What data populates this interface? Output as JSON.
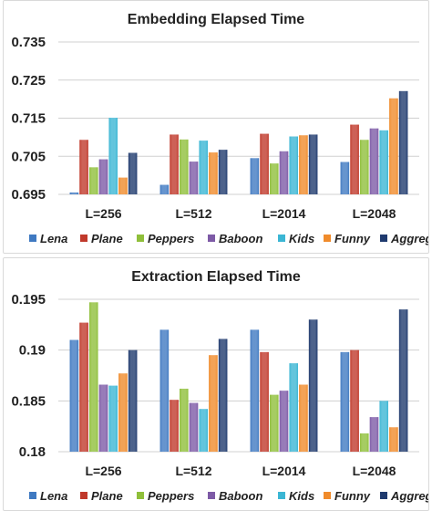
{
  "colors": {
    "Lena": "#3f79c1",
    "Plane": "#c0392b",
    "Peppers": "#8fbf3a",
    "Baboon": "#7d5aa6",
    "Kids": "#3bb6d4",
    "Funny": "#f08b2b",
    "Aggregate": "#1f3a6e"
  },
  "chart_data": [
    {
      "type": "bar",
      "title": "Embedding Elapsed Time",
      "categories": [
        "L=256",
        "L=512",
        "L=2014",
        "L=2048"
      ],
      "ylim": [
        0.695,
        0.735
      ],
      "yticks": [
        "0.695",
        "0.705",
        "0.715",
        "0.725",
        "0.735"
      ],
      "grid": true,
      "legend_position": "bottom",
      "series": [
        {
          "name": "Lena",
          "values": [
            0.6955,
            0.6975,
            0.7045,
            0.7035
          ]
        },
        {
          "name": "Plane",
          "values": [
            0.7093,
            0.7107,
            0.7109,
            0.7133
          ]
        },
        {
          "name": "Peppers",
          "values": [
            0.7021,
            0.7094,
            0.7031,
            0.7093
          ]
        },
        {
          "name": "Baboon",
          "values": [
            0.7042,
            0.7036,
            0.7063,
            0.7123
          ]
        },
        {
          "name": "Kids",
          "values": [
            0.7151,
            0.7091,
            0.7102,
            0.7118
          ]
        },
        {
          "name": "Funny",
          "values": [
            0.6994,
            0.706,
            0.7105,
            0.7202
          ]
        },
        {
          "name": "Aggregate",
          "values": [
            0.7059,
            0.7067,
            0.7107,
            0.7221
          ]
        }
      ]
    },
    {
      "type": "bar",
      "title": "Extraction Elapsed Time",
      "categories": [
        "L=256",
        "L=512",
        "L=2014",
        "L=2048"
      ],
      "ylim": [
        0.18,
        0.195
      ],
      "yticks": [
        "0.18",
        "0.185",
        "0.19",
        "0.195"
      ],
      "grid": true,
      "legend_position": "bottom",
      "series": [
        {
          "name": "Lena",
          "values": [
            0.191,
            0.192,
            0.192,
            0.1898
          ]
        },
        {
          "name": "Plane",
          "values": [
            0.1927,
            0.1851,
            0.1898,
            0.19
          ]
        },
        {
          "name": "Peppers",
          "values": [
            0.1947,
            0.1862,
            0.1856,
            0.1818
          ]
        },
        {
          "name": "Baboon",
          "values": [
            0.1866,
            0.1848,
            0.186,
            0.1834
          ]
        },
        {
          "name": "Kids",
          "values": [
            0.1865,
            0.1842,
            0.1887,
            0.185
          ]
        },
        {
          "name": "Funny",
          "values": [
            0.1877,
            0.1895,
            0.1866,
            0.1824
          ]
        },
        {
          "name": "Aggregate",
          "values": [
            0.19,
            0.1911,
            0.193,
            0.194
          ]
        }
      ]
    }
  ]
}
